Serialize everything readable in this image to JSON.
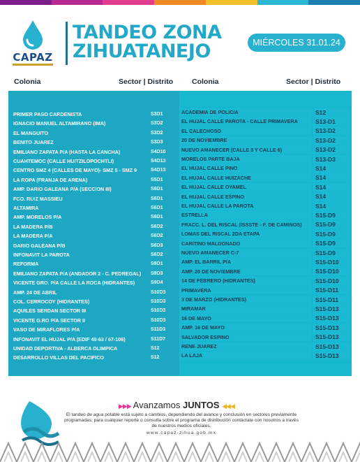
{
  "brand": {
    "logo_text": "CAPAZ",
    "stripe_colors": [
      "#7a1f8c",
      "#b62a92",
      "#e23c8e",
      "#f08a24",
      "#f3c12b",
      "#2bb6d3",
      "#1c7fb0"
    ]
  },
  "header": {
    "title_line1": "TANDEO ZONA",
    "title_line2": "ZIHUATANEJO",
    "date": "MIÉRCOLES 31.01.24"
  },
  "columns": {
    "colonia": "Colonia",
    "sector": "Sector | Distrito"
  },
  "left_rows": [
    {
      "colonia": "PRIMER PASO CARDENISTA",
      "sector": "S3D1"
    },
    {
      "colonia": "IGNACIO MANUEL ALTAMIRANO (IMA)",
      "sector": "S3D2"
    },
    {
      "colonia": "EL MANGUITO",
      "sector": "S3D2"
    },
    {
      "colonia": "BENITO JUAREZ",
      "sector": "S3D3"
    },
    {
      "colonia": "EMILIANO ZAPATA P/A (HASTA LA CANCHA)",
      "sector": "S4D10"
    },
    {
      "colonia": "CUAHTEMOC (CALLE HUITZILOPOCHTLI)",
      "sector": "S4D13"
    },
    {
      "colonia": "CENTRO SMZ 4 (CALLES DE MAYO)- SMZ 5 - SMZ 9",
      "sector": "S4D13"
    },
    {
      "colonia": "LA ROPA (FRANJA DE ARENA)",
      "sector": "S5D1"
    },
    {
      "colonia": "AMP. DARIO GALEANA P/A (SECCION III)",
      "sector": "S6D1"
    },
    {
      "colonia": "FCO. RUIZ MASSIEU",
      "sector": "S6D1"
    },
    {
      "colonia": "ALTAMIRA",
      "sector": "S6D1"
    },
    {
      "colonia": "AMP. MORELOS P/A",
      "sector": "S6D1"
    },
    {
      "colonia": "LA MADERA P/B",
      "sector": "S6D2"
    },
    {
      "colonia": "LA MADERA P/A",
      "sector": "S6D2"
    },
    {
      "colonia": " DARIO GALEANA P/B",
      "sector": "S6D3"
    },
    {
      "colonia": "INFONAVIT LA PAROTA",
      "sector": "S6D2"
    },
    {
      "colonia": "REFORMA",
      "sector": "S9D1"
    },
    {
      "colonia": "EMILIANO ZAPATA P/A (ANDADOR 2 - C. PEDREGAL)",
      "sector": "S9D3"
    },
    {
      "colonia": "VICENTE GRO. P/A CALLE LA ROCA (HIDRANTES)",
      "sector": "S9D4"
    },
    {
      "colonia": "AMP. 24 DE ABRIL",
      "sector": "S10D3"
    },
    {
      "colonia": "COL. CERROCOY (HIDRANTES)",
      "sector": "S10D3"
    },
    {
      "colonia": "AQUILES SERDAN SECTOR III",
      "sector": "S10D3"
    },
    {
      "colonia": "VICENTE G.RO P/A SECTOR II",
      "sector": "S10D3"
    },
    {
      "colonia": "VASO DE MIRAFLORES P/A",
      "sector": "S11D3"
    },
    {
      "colonia": "INFONAVIT EL HUJAL P/A (EDIF 49-63 / 67-106)",
      "sector": "S11D7"
    },
    {
      "colonia": "UNIDAD DEPORTIVA - ALBERCA OLIMPICA",
      "sector": "S12"
    },
    {
      "colonia": "DESARROLLO VILLAS DEL PACIFICO",
      "sector": "S12"
    }
  ],
  "right_rows": [
    {
      "colonia": "ACADEMIA DE POLICIA",
      "sector": "S12"
    },
    {
      "colonia": "EL HUJAL CALLE PAROTA - CALLE PRIMAVERA",
      "sector": "S13-D1"
    },
    {
      "colonia": "EL CALECHOSO",
      "sector": "S13-D2"
    },
    {
      "colonia": "20 DE NOVIEMBRE",
      "sector": "S13-D2"
    },
    {
      "colonia": "NUEVO AMANECER (CALLE 3 Y CALLE 6)",
      "sector": "S13-D2"
    },
    {
      "colonia": "MORELOS PARTE BAJA",
      "sector": "S13-D3"
    },
    {
      "colonia": "EL HUJAL CALLE PINO",
      "sector": "S14"
    },
    {
      "colonia": "EL HUJAL CALLE HUIZACHE",
      "sector": "S14"
    },
    {
      "colonia": "EL HUJAL CALLE OYAMEL",
      "sector": "S14"
    },
    {
      "colonia": "EL HUJAL CALLE ESPINO",
      "sector": "S14"
    },
    {
      "colonia": "EL HUJAL CALLE LA PAROTA",
      "sector": "S14"
    },
    {
      "colonia": "ESTRELLA",
      "sector": "S15-D9"
    },
    {
      "colonia": "FRACC. L. DEL RISCAL (ISSSTE - F. DE CAMINOS)",
      "sector": "S15-D9"
    },
    {
      "colonia": "LOMAS DEL RISCAL 2DA ETAPA",
      "sector": "S15-D9"
    },
    {
      "colonia": "CARITINO MALDONADO",
      "sector": "S15-D9"
    },
    {
      "colonia": "NUEVO AMANECER C-7",
      "sector": "S15-D9"
    },
    {
      "colonia": "AMP. EL BARRIL P/A",
      "sector": "S15-D10"
    },
    {
      "colonia": "AMP. 20 DE NOVIEMBRE",
      "sector": "S15-D10"
    },
    {
      "colonia": "14 DE FEBRERO (HIDRANTES)",
      "sector": "S15-D10"
    },
    {
      "colonia": "PRIMAVERA",
      "sector": "S15-D11"
    },
    {
      "colonia": "3 DE MARZO (HIDRANTES)",
      "sector": "S15-D11"
    },
    {
      "colonia": "MIRAMAR",
      "sector": "S15-D13"
    },
    {
      "colonia": "16 DE MAYO",
      "sector": "S15-D13"
    },
    {
      "colonia": "AMP. 16 DE MAYO",
      "sector": "S15-D13"
    },
    {
      "colonia": "SALVADOR ESPINO",
      "sector": "S15-D13"
    },
    {
      "colonia": "RENE JUAREZ",
      "sector": "S15-D13"
    },
    {
      "colonia": "LA LAJA",
      "sector": "S15-D13"
    }
  ],
  "footer": {
    "slogan_a": "Avanzamos",
    "slogan_b": "JUNTOS",
    "note": "El tandeo de agua potable está sujeto a cambios, dependiendo del avance y conclusión en sectores previamente programadas; para cualquier reporte o consulta sobre el programa de distribución contáctate con nosotros a través de nuestros medios oficiales.",
    "web": "www.capaz-zihua.gob.mx"
  }
}
